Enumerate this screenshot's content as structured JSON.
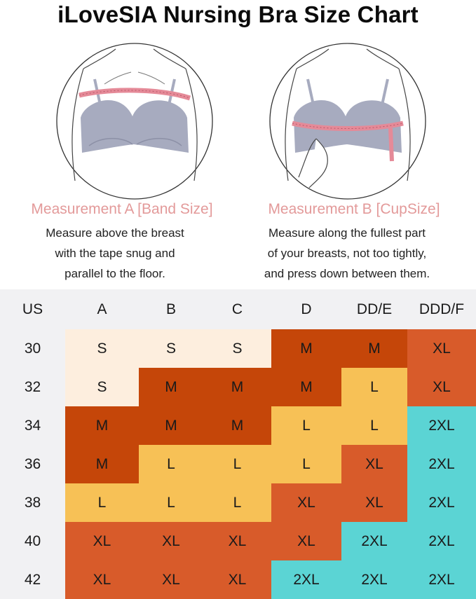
{
  "title": "iLoveSIA Nursing Bra Size Chart",
  "measurement_a": {
    "heading": "Measurement A [Band Size]",
    "lines": [
      "Measure above the breast",
      "with the tape snug and",
      "parallel to the floor."
    ]
  },
  "measurement_b": {
    "heading": "Measurement B [CupSize]",
    "lines": [
      "Measure along the fullest part",
      "of your breasts, not too tightly,",
      "and press down between them."
    ]
  },
  "size_table": {
    "columns": [
      "US",
      "A",
      "B",
      "C",
      "D",
      "DD/E",
      "DDD/F"
    ],
    "rows": [
      {
        "band": "30",
        "sizes": [
          "S",
          "S",
          "S",
          "M",
          "M",
          "XL"
        ]
      },
      {
        "band": "32",
        "sizes": [
          "S",
          "M",
          "M",
          "M",
          "L",
          "XL"
        ]
      },
      {
        "band": "34",
        "sizes": [
          "M",
          "M",
          "M",
          "L",
          "L",
          "2XL"
        ]
      },
      {
        "band": "36",
        "sizes": [
          "M",
          "L",
          "L",
          "L",
          "XL",
          "2XL"
        ]
      },
      {
        "band": "38",
        "sizes": [
          "L",
          "L",
          "L",
          "XL",
          "XL",
          "2XL"
        ]
      },
      {
        "band": "40",
        "sizes": [
          "XL",
          "XL",
          "XL",
          "XL",
          "2XL",
          "2XL"
        ]
      },
      {
        "band": "42",
        "sizes": [
          "XL",
          "XL",
          "XL",
          "2XL",
          "2XL",
          "2XL"
        ]
      }
    ]
  },
  "size_colors": {
    "S": "#fdeede",
    "M": "#c54609",
    "L": "#f7c156",
    "XL": "#d85b2a",
    "2XL": "#5bd4d4"
  },
  "colors": {
    "heading": "#e39a9a",
    "tape": "#e58a98",
    "bra": "#a7abbf",
    "table_background": "#f1f1f3"
  }
}
